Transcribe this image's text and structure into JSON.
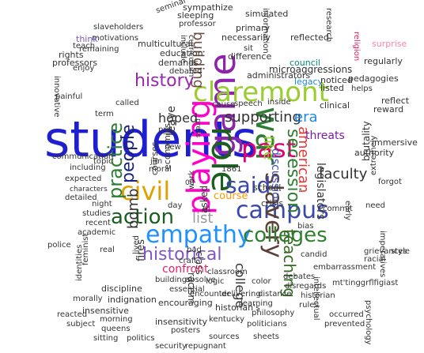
{
  "words": [
    {
      "text": "students",
      "color": "#1f1fcf"
    },
    {
      "text": "game",
      "color": "#8e24aa"
    },
    {
      "text": "role",
      "color": "#1b5e20"
    },
    {
      "text": "war",
      "color": "#2e7d32"
    },
    {
      "text": "playing",
      "color": "#ff00cc"
    },
    {
      "text": "claremont",
      "color": "#9acd32"
    },
    {
      "text": "past",
      "color": "#e0006f"
    },
    {
      "text": "civil",
      "color": "#e0a000"
    },
    {
      "text": "campus",
      "color": "#3949ab"
    },
    {
      "text": "slavery",
      "color": "#5d4037"
    },
    {
      "text": "empathy",
      "color": "#1e90ff"
    },
    {
      "text": "colleges",
      "color": "#2f7f2f"
    },
    {
      "text": "action",
      "color": "#1b5e20"
    },
    {
      "text": "practice",
      "color": "#2e7d32"
    },
    {
      "text": "people",
      "color": "#1a237e"
    },
    {
      "text": "history",
      "color": "#9c27b0"
    },
    {
      "text": "secession",
      "color": "#2e7d32"
    },
    {
      "text": "historical",
      "color": "#7e57c2"
    },
    {
      "text": "said",
      "color": "#3949ab"
    },
    {
      "text": "teaching",
      "color": "#33691e"
    },
    {
      "text": "american",
      "color": "#e53935"
    },
    {
      "text": "hoped",
      "color": "#333333"
    },
    {
      "text": "supporting",
      "color": "#333333"
    },
    {
      "text": "building",
      "color": "#6d4c41"
    },
    {
      "text": "bomb",
      "color": "#333333"
    },
    {
      "text": "list",
      "color": "#999999"
    },
    {
      "text": "like",
      "color": "#9acd32"
    },
    {
      "text": "college",
      "color": "#333333"
    },
    {
      "text": "faculty",
      "color": "#333333"
    },
    {
      "text": "course",
      "color": "#ff9800"
    },
    {
      "text": "era",
      "color": "#1e88e5"
    },
    {
      "text": "legislators",
      "color": "#333333"
    },
    {
      "text": "threats",
      "color": "#7b1fa2"
    },
    {
      "text": "discussion",
      "color": "#3f51b5"
    },
    {
      "text": "leave",
      "color": "#333333"
    },
    {
      "text": "fires",
      "color": "#333333"
    },
    {
      "text": "racism",
      "color": "#333333"
    },
    {
      "text": "class",
      "color": "#333333"
    },
    {
      "text": "confront",
      "color": "#e91e63"
    },
    {
      "text": "asked",
      "color": "#333333"
    },
    {
      "text": "school",
      "color": "#333333"
    },
    {
      "text": "crisis",
      "color": "#333333"
    },
    {
      "text": "brutality",
      "color": "#333333"
    },
    {
      "text": "authority",
      "color": "#333333"
    },
    {
      "text": "immersive",
      "color": "#333333"
    },
    {
      "text": "reward",
      "color": "#333333"
    },
    {
      "text": "reflect",
      "color": "#333333"
    },
    {
      "text": "regularly",
      "color": "#333333"
    },
    {
      "text": "surprise",
      "color": "#ff80ab"
    },
    {
      "text": "religion",
      "color": "#e91e63"
    },
    {
      "text": "research",
      "color": "#333333"
    },
    {
      "text": "microaggressions",
      "color": "#333333"
    },
    {
      "text": "council",
      "color": "#00897b"
    },
    {
      "text": "legacy",
      "color": "#1e88e5"
    },
    {
      "text": "noticed",
      "color": "#333333"
    },
    {
      "text": "listed",
      "color": "#333333"
    },
    {
      "text": "reflected",
      "color": "#333333"
    },
    {
      "text": "information",
      "color": "#333333"
    },
    {
      "text": "simulated",
      "color": "#333333"
    },
    {
      "text": "sleeping",
      "color": "#333333"
    },
    {
      "text": "sympathize",
      "color": "#333333"
    },
    {
      "text": "seminar",
      "color": "#333333"
    },
    {
      "text": "slaveholders",
      "color": "#333333"
    },
    {
      "text": "motivations",
      "color": "#333333"
    },
    {
      "text": "sit",
      "color": "#333333"
    },
    {
      "text": "rights",
      "color": "#333333"
    },
    {
      "text": "think",
      "color": "#7e57c2"
    },
    {
      "text": "teach",
      "color": "#333333"
    },
    {
      "text": "professors",
      "color": "#333333"
    },
    {
      "text": "remaining",
      "color": "#333333"
    },
    {
      "text": "multicultural",
      "color": "#333333"
    },
    {
      "text": "education",
      "color": "#333333"
    },
    {
      "text": "demands",
      "color": "#333333"
    },
    {
      "text": "debated",
      "color": "#333333"
    },
    {
      "text": "administrators",
      "color": "#333333"
    },
    {
      "text": "difference",
      "color": "#333333"
    },
    {
      "text": "necessarily",
      "color": "#333333"
    },
    {
      "text": "primary",
      "color": "#333333"
    },
    {
      "text": "professor",
      "color": "#333333"
    },
    {
      "text": "include",
      "color": "#333333"
    },
    {
      "text": "curriculum",
      "color": "#333333"
    },
    {
      "text": "speech",
      "color": "#333333"
    },
    {
      "text": "cause",
      "color": "#333333"
    },
    {
      "text": "press",
      "color": "#333333"
    },
    {
      "text": "inside",
      "color": "#333333"
    },
    {
      "text": "clinical",
      "color": "#333333"
    },
    {
      "text": "pedagogies",
      "color": "#333333"
    },
    {
      "text": "helps",
      "color": "#333333"
    },
    {
      "text": "enjoy",
      "color": "#333333"
    },
    {
      "text": "innovative",
      "color": "#333333"
    },
    {
      "text": "painful",
      "color": "#333333"
    },
    {
      "text": "called",
      "color": "#333333"
    },
    {
      "text": "moral",
      "color": "#333333"
    },
    {
      "text": "communication",
      "color": "#333333"
    },
    {
      "text": "including",
      "color": "#333333"
    },
    {
      "text": "expected",
      "color": "#333333"
    },
    {
      "text": "characters",
      "color": "#333333"
    },
    {
      "text": "detailed",
      "color": "#333333"
    },
    {
      "text": "night",
      "color": "#333333"
    },
    {
      "text": "studies",
      "color": "#333333"
    },
    {
      "text": "recent",
      "color": "#333333"
    },
    {
      "text": "academic",
      "color": "#333333"
    },
    {
      "text": "police",
      "color": "#333333"
    },
    {
      "text": "real",
      "color": "#333333"
    },
    {
      "text": "feminist",
      "color": "#333333"
    },
    {
      "text": "identities",
      "color": "#333333"
    },
    {
      "text": "morally",
      "color": "#333333"
    },
    {
      "text": "discipline",
      "color": "#333333"
    },
    {
      "text": "indignation",
      "color": "#333333"
    },
    {
      "text": "insensitive",
      "color": "#333333"
    },
    {
      "text": "morning",
      "color": "#333333"
    },
    {
      "text": "queens",
      "color": "#333333"
    },
    {
      "text": "sitting",
      "color": "#333333"
    },
    {
      "text": "politics",
      "color": "#333333"
    },
    {
      "text": "security",
      "color": "#333333"
    },
    {
      "text": "repugnant",
      "color": "#333333"
    },
    {
      "text": "reacted",
      "color": "#333333"
    },
    {
      "text": "subject",
      "color": "#333333"
    },
    {
      "text": "encouraging",
      "color": "#333333"
    },
    {
      "text": "insensitivity",
      "color": "#333333"
    },
    {
      "text": "posters",
      "color": "#333333"
    },
    {
      "text": "kentucky",
      "color": "#333333"
    },
    {
      "text": "historian's",
      "color": "#333333"
    },
    {
      "text": "philosophy",
      "color": "#333333"
    },
    {
      "text": "politicians",
      "color": "#333333"
    },
    {
      "text": "sheets",
      "color": "#333333"
    },
    {
      "text": "sources",
      "color": "#333333"
    },
    {
      "text": "learning",
      "color": "#333333"
    },
    {
      "text": "delivering",
      "color": "#333333"
    },
    {
      "text": "encounter",
      "color": "#333333"
    },
    {
      "text": "essential",
      "color": "#333333"
    },
    {
      "text": "logic",
      "color": "#333333"
    },
    {
      "text": "distance",
      "color": "#333333"
    },
    {
      "text": "classroom",
      "color": "#333333"
    },
    {
      "text": "absolve",
      "color": "#333333"
    },
    {
      "text": "buildings",
      "color": "#333333"
    },
    {
      "text": "craft",
      "color": "#333333"
    },
    {
      "text": "bad",
      "color": "#333333"
    },
    {
      "text": "color",
      "color": "#333333"
    },
    {
      "text": "debates",
      "color": "#333333"
    },
    {
      "text": "disregards",
      "color": "#333333"
    },
    {
      "text": "historian",
      "color": "#333333"
    },
    {
      "text": "rules",
      "color": "#333333"
    },
    {
      "text": "occurred",
      "color": "#333333"
    },
    {
      "text": "prevented",
      "color": "#333333"
    },
    {
      "text": "psychology",
      "color": "#333333"
    },
    {
      "text": "intellectual",
      "color": "#333333"
    },
    {
      "text": "candid",
      "color": "#333333"
    },
    {
      "text": "embarrassment",
      "color": "#333333"
    },
    {
      "text": "racial",
      "color": "#333333"
    },
    {
      "text": "grievances",
      "color": "#333333"
    },
    {
      "text": "mt'tinggrflfigiast",
      "color": "#333333"
    },
    {
      "text": "style",
      "color": "#333333"
    },
    {
      "text": "imperatives",
      "color": "#333333"
    },
    {
      "text": "forgot",
      "color": "#333333"
    },
    {
      "text": "need",
      "color": "#333333"
    },
    {
      "text": "early",
      "color": "#333333"
    },
    {
      "text": "extremely",
      "color": "#333333"
    },
    {
      "text": "commit",
      "color": "#333333"
    },
    {
      "text": "bias",
      "color": "#333333"
    },
    {
      "text": "economics",
      "color": "#333333"
    },
    {
      "text": "courses",
      "color": "#333333"
    },
    {
      "text": "work",
      "color": "#333333"
    },
    {
      "text": "lived",
      "color": "#333333"
    },
    {
      "text": "day",
      "color": "#333333"
    },
    {
      "text": "topic",
      "color": "#333333"
    },
    {
      "text": "1861",
      "color": "#333333"
    },
    {
      "text": "pro",
      "color": "#333333"
    },
    {
      "text": "new",
      "color": "#333333"
    },
    {
      "text": "term",
      "color": "#333333"
    },
    {
      "text": "jim",
      "color": "#333333"
    },
    {
      "text": "00",
      "color": "#333333"
    },
    {
      "text": "01",
      "color": "#333333"
    }
  ]
}
